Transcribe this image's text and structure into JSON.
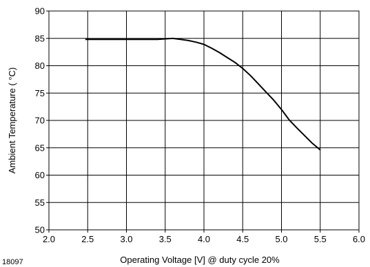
{
  "chart_data": {
    "type": "line",
    "title": "",
    "xlabel": "Operating  Voltage [V] @ duty cycle 20%",
    "ylabel": "Ambient  Temperature ( °C)",
    "xlim": [
      2.0,
      6.0
    ],
    "ylim": [
      50,
      90
    ],
    "x_ticks": [
      "2.0",
      "2.5",
      "3.0",
      "3.5",
      "4.0",
      "4.5",
      "5.0",
      "5.5",
      "6.0"
    ],
    "y_ticks": [
      "50",
      "55",
      "60",
      "65",
      "70",
      "75",
      "80",
      "85",
      "90"
    ],
    "grid": true,
    "series": [
      {
        "x": [
          2.47,
          2.8,
          3.2,
          3.4,
          3.6,
          3.7,
          3.8,
          3.9,
          4.0,
          4.1,
          4.2,
          4.3,
          4.4,
          4.5,
          4.6,
          4.7,
          4.8,
          4.9,
          5.0,
          5.1,
          5.2,
          5.3,
          5.4,
          5.5
        ],
        "y": [
          84.8,
          84.8,
          84.8,
          84.8,
          85.0,
          84.8,
          84.6,
          84.3,
          83.9,
          83.2,
          82.4,
          81.5,
          80.6,
          79.5,
          78.2,
          76.7,
          75.2,
          73.7,
          72.0,
          70.1,
          68.6,
          67.2,
          65.8,
          64.6
        ]
      }
    ],
    "colors": {
      "line": "#000000",
      "grid": "#000000",
      "background": "#ffffff"
    }
  },
  "figure_id": "18097"
}
